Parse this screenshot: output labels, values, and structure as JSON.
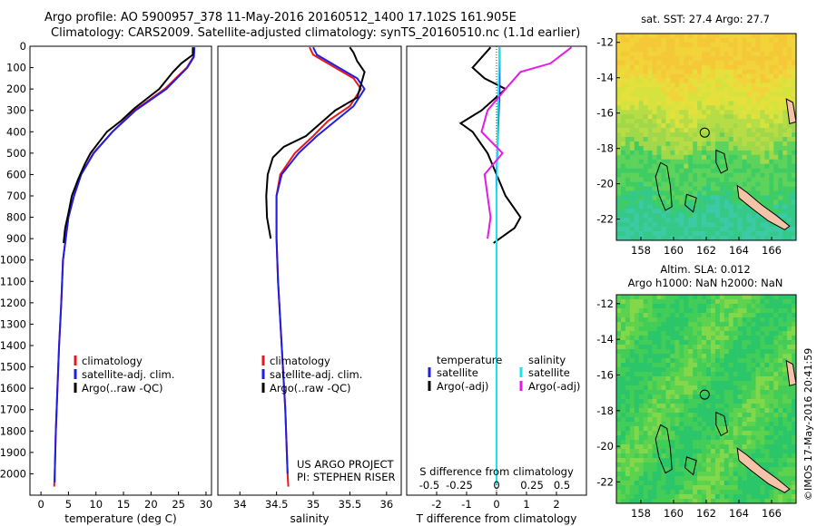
{
  "header": {
    "line1": "Argo profile: AO 5900957_378 11-May-2016 20160512_1400 17.102S 161.905E",
    "line2": "Climatology: CARS2009. Satellite-adjusted climatology: synTS_20160510.nc (1.1d earlier)"
  },
  "colors": {
    "climatology": "#e8191c",
    "satellite": "#1e1ee6",
    "argo": "#000000",
    "sat_salinity": "#19e6e6",
    "argo_salinity": "#e619e6"
  },
  "chart_data": [
    {
      "type": "line",
      "xlabel": "temperature (deg C)",
      "ylabel": "",
      "xlim": [
        -2,
        31
      ],
      "ylim": [
        2100,
        0
      ],
      "xticks": [
        0,
        5,
        10,
        15,
        20,
        25,
        30
      ],
      "yticks": [
        0,
        100,
        200,
        300,
        400,
        500,
        600,
        700,
        800,
        900,
        1000,
        1100,
        1200,
        1300,
        1400,
        1500,
        1600,
        1700,
        1800,
        1900,
        2000
      ],
      "legend": [
        "climatology",
        "satellite-adj. clim.",
        "Argo(..raw -QC)"
      ],
      "series": [
        {
          "name": "climatology",
          "color": "#e8191c",
          "points": [
            [
              27.8,
              5
            ],
            [
              27.7,
              50
            ],
            [
              26.5,
              100
            ],
            [
              22.5,
              200
            ],
            [
              17.0,
              300
            ],
            [
              13.0,
              400
            ],
            [
              9.5,
              500
            ],
            [
              7.3,
              600
            ],
            [
              6.0,
              700
            ],
            [
              5.0,
              800
            ],
            [
              4.5,
              900
            ],
            [
              4.0,
              1000
            ],
            [
              3.7,
              1200
            ],
            [
              3.3,
              1400
            ],
            [
              3.0,
              1600
            ],
            [
              2.7,
              1800
            ],
            [
              2.5,
              2000
            ],
            [
              2.4,
              2060
            ]
          ]
        },
        {
          "name": "satellite-adj. clim.",
          "color": "#1e1ee6",
          "points": [
            [
              27.9,
              5
            ],
            [
              27.8,
              50
            ],
            [
              26.6,
              100
            ],
            [
              22.8,
              200
            ],
            [
              17.2,
              300
            ],
            [
              13.0,
              400
            ],
            [
              9.6,
              500
            ],
            [
              7.3,
              600
            ],
            [
              6.0,
              700
            ],
            [
              5.0,
              800
            ],
            [
              4.5,
              900
            ],
            [
              4.0,
              1000
            ],
            [
              3.7,
              1200
            ],
            [
              3.3,
              1400
            ],
            [
              3.0,
              1600
            ],
            [
              2.7,
              1800
            ],
            [
              2.5,
              2000
            ],
            [
              2.5,
              2040
            ]
          ]
        },
        {
          "name": "Argo(..raw -QC)",
          "color": "#000000",
          "points": [
            [
              27.6,
              5
            ],
            [
              27.6,
              40
            ],
            [
              25.5,
              80
            ],
            [
              24.0,
              120
            ],
            [
              21.5,
              200
            ],
            [
              17.0,
              290
            ],
            [
              14.5,
              350
            ],
            [
              12.0,
              400
            ],
            [
              9.0,
              500
            ],
            [
              8.0,
              550
            ],
            [
              6.8,
              620
            ],
            [
              5.6,
              700
            ],
            [
              5.0,
              780
            ],
            [
              4.4,
              850
            ],
            [
              4.1,
              920
            ]
          ]
        }
      ]
    },
    {
      "type": "line",
      "xlabel": "salinity",
      "ylabel": "",
      "xlim": [
        33.7,
        36.2
      ],
      "ylim": [
        2100,
        0
      ],
      "xticks": [
        34,
        34.5,
        35,
        35.5,
        36
      ],
      "legend": [
        "climatology",
        "satellite-adj. clim.",
        "Argo(..raw -QC)"
      ],
      "annotation": [
        "US ARGO PROJECT",
        "PI: STEPHEN RISER"
      ],
      "series": [
        {
          "name": "climatology",
          "color": "#e8191c",
          "points": [
            [
              34.95,
              5
            ],
            [
              35.0,
              40
            ],
            [
              35.3,
              100
            ],
            [
              35.55,
              150
            ],
            [
              35.65,
              200
            ],
            [
              35.5,
              280
            ],
            [
              35.2,
              350
            ],
            [
              35.0,
              420
            ],
            [
              34.75,
              500
            ],
            [
              34.55,
              600
            ],
            [
              34.5,
              700
            ],
            [
              34.5,
              900
            ],
            [
              34.52,
              1100
            ],
            [
              34.57,
              1400
            ],
            [
              34.62,
              1700
            ],
            [
              34.65,
              2000
            ],
            [
              34.66,
              2060
            ]
          ]
        },
        {
          "name": "satellite-adj. clim.",
          "color": "#1e1ee6",
          "points": [
            [
              35.0,
              5
            ],
            [
              35.05,
              40
            ],
            [
              35.35,
              100
            ],
            [
              35.6,
              150
            ],
            [
              35.7,
              200
            ],
            [
              35.55,
              280
            ],
            [
              35.3,
              350
            ],
            [
              35.05,
              420
            ],
            [
              34.8,
              500
            ],
            [
              34.57,
              600
            ],
            [
              34.5,
              700
            ],
            [
              34.5,
              900
            ],
            [
              34.52,
              1100
            ],
            [
              34.57,
              1400
            ],
            [
              34.62,
              1700
            ],
            [
              34.65,
              2000
            ]
          ]
        },
        {
          "name": "Argo(..raw -QC)",
          "color": "#000000",
          "points": [
            [
              35.5,
              5
            ],
            [
              35.55,
              30
            ],
            [
              35.6,
              70
            ],
            [
              35.7,
              120
            ],
            [
              35.65,
              180
            ],
            [
              35.6,
              240
            ],
            [
              35.3,
              300
            ],
            [
              35.1,
              360
            ],
            [
              34.9,
              420
            ],
            [
              34.6,
              470
            ],
            [
              34.45,
              520
            ],
            [
              34.38,
              600
            ],
            [
              34.36,
              700
            ],
            [
              34.37,
              800
            ],
            [
              34.42,
              900
            ]
          ]
        }
      ]
    },
    {
      "type": "line",
      "xlabel": "T difference from climatology",
      "ylabel": "",
      "xlim": [
        -3,
        3
      ],
      "ylim": [
        2100,
        0
      ],
      "xticks": [
        -2,
        -1,
        0,
        1,
        2
      ],
      "top_label": "S difference from climatology",
      "top_ticks": [
        "-0.5",
        "-0.25",
        "0",
        "0.25",
        "0.5"
      ],
      "legend_titles": [
        "temperature",
        "salinity"
      ],
      "legend": [
        "satellite",
        "Argo(-adj)",
        "satellite",
        "Argo(-adj)"
      ],
      "series": [
        {
          "name": "satellite",
          "group": "temperature",
          "color": "#1e1ee6",
          "points": [
            [
              0.1,
              5
            ],
            [
              0.1,
              200
            ],
            [
              0.05,
              400
            ],
            [
              0.0,
              600
            ],
            [
              0.0,
              1000
            ],
            [
              0.0,
              2050
            ]
          ]
        },
        {
          "name": "Argo(-adj)",
          "group": "temperature",
          "color": "#000000",
          "points": [
            [
              -0.2,
              5
            ],
            [
              -0.8,
              100
            ],
            [
              -0.4,
              150
            ],
            [
              0.3,
              200
            ],
            [
              -0.5,
              300
            ],
            [
              -1.2,
              360
            ],
            [
              -0.8,
              400
            ],
            [
              -0.3,
              500
            ],
            [
              0.0,
              600
            ],
            [
              0.3,
              700
            ],
            [
              0.8,
              800
            ],
            [
              0.6,
              850
            ],
            [
              -0.1,
              920
            ]
          ]
        },
        {
          "name": "satellite",
          "group": "salinity",
          "color": "#19e6e6",
          "points": [
            [
              0.1,
              5
            ],
            [
              0.05,
              300
            ],
            [
              0.0,
              700
            ],
            [
              0.0,
              1000
            ],
            [
              0.0,
              2050
            ]
          ]
        },
        {
          "name": "Argo(-adj)",
          "group": "salinity",
          "color": "#e619e6",
          "points": [
            [
              2.5,
              5
            ],
            [
              1.8,
              80
            ],
            [
              0.8,
              120
            ],
            [
              0.3,
              200
            ],
            [
              -0.3,
              300
            ],
            [
              -0.5,
              400
            ],
            [
              0.2,
              500
            ],
            [
              -0.4,
              600
            ],
            [
              -0.3,
              700
            ],
            [
              -0.2,
              800
            ],
            [
              -0.3,
              900
            ]
          ]
        }
      ]
    },
    {
      "type": "heatmap",
      "title": "sat. SST: 27.4  Argo: 27.7",
      "xlim": [
        156.5,
        167.5
      ],
      "ylim": [
        -23.2,
        -11.5
      ],
      "xticks": [
        158,
        160,
        162,
        164,
        166
      ],
      "yticks": [
        -12,
        -14,
        -16,
        -18,
        -20,
        -22
      ],
      "profile_location": [
        161.905,
        -17.102
      ]
    },
    {
      "type": "heatmap",
      "title_line1": "Altim. SLA: 0.012",
      "title_line2": "Argo h1000: NaN  h2000: NaN",
      "xlim": [
        156.5,
        167.5
      ],
      "ylim": [
        -23.2,
        -11.5
      ],
      "xticks": [
        158,
        160,
        162,
        164,
        166
      ],
      "yticks": [
        -12,
        -14,
        -16,
        -18,
        -20,
        -22
      ],
      "profile_location": [
        161.905,
        -17.102
      ]
    }
  ],
  "credit": "©IMOS 17-May-2016 20:41:59"
}
